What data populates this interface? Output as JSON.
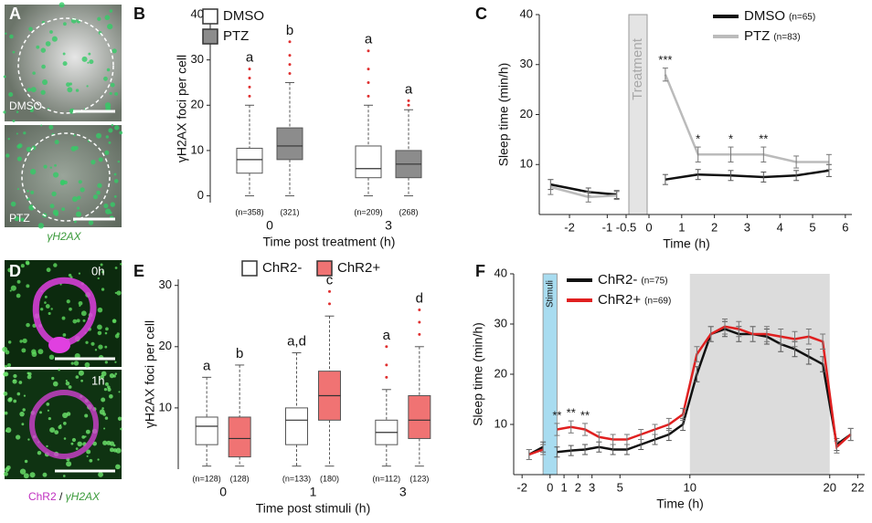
{
  "panel_labels": [
    "A",
    "B",
    "C",
    "D",
    "E",
    "F"
  ],
  "images": {
    "A": {
      "top_label": "DMSO",
      "bottom_label": "PTZ",
      "caption": "γH2AX"
    },
    "D": {
      "top_label": "0h",
      "bottom_label": "1h",
      "caption_1": "ChR2",
      "caption_sep": " / ",
      "caption_2": "γH2AX"
    }
  },
  "chart_data": [
    {
      "type": "box",
      "ylabel": "γH2AX foci per cell",
      "xlabel": "Time post treatment (h)",
      "categories": [
        "0",
        "3"
      ],
      "ylim": [
        -1.5,
        40
      ],
      "yticks": [
        0,
        10,
        20,
        30,
        40
      ],
      "outlier_color": "#e03030",
      "legend": "upper-left",
      "series": [
        {
          "name": "DMSO",
          "color": "#ffffff",
          "min": [
            0,
            0
          ],
          "q1": [
            5,
            4
          ],
          "median": [
            8,
            6
          ],
          "q3": [
            10.5,
            11
          ],
          "max": [
            20,
            20
          ],
          "outliers": [
            [
              22,
              24,
              26,
              28
            ],
            [
              22,
              25,
              28,
              32
            ]
          ],
          "letters": [
            "a",
            "a"
          ],
          "n_labels": [
            "(n=358)",
            "(n=209)"
          ]
        },
        {
          "name": "PTZ",
          "color": "#8c8c8c",
          "min": [
            0,
            0
          ],
          "q1": [
            8,
            4
          ],
          "median": [
            11,
            7
          ],
          "q3": [
            15,
            10
          ],
          "max": [
            25,
            19
          ],
          "outliers": [
            [
              27,
              29,
              31,
              34
            ],
            [
              20,
              21
            ]
          ],
          "letters": [
            "b",
            "a"
          ],
          "n_labels": [
            "(321)",
            "(268)"
          ]
        }
      ]
    },
    {
      "type": "line",
      "ylabel": "Sleep time (min/h)",
      "xlabel": "Time (h)",
      "x": [
        -2.5,
        -1.5,
        -0.75,
        0,
        0.5,
        1.5,
        2.5,
        3.5,
        4.5,
        5.5
      ],
      "xlim": [
        -2.8,
        6.2
      ],
      "xticks": [
        -2,
        -1,
        -0.5,
        0,
        1,
        2,
        3,
        4,
        5,
        6
      ],
      "ylim": [
        0,
        40
      ],
      "yticks": [
        10,
        20,
        30,
        40
      ],
      "legend": "upper-right",
      "band": {
        "label": "Treatment",
        "range": [
          -0.5,
          0
        ],
        "color": "#e4e4e4"
      },
      "significance": [
        null,
        null,
        null,
        null,
        "***",
        "*",
        "*",
        "**",
        null,
        null
      ],
      "series": [
        {
          "name": "DMSO",
          "n_label": "(n=65)",
          "color": "#111111",
          "values": [
            6,
            4.5,
            4,
            null,
            7,
            8,
            7.8,
            7.5,
            7.8,
            8.8
          ],
          "errors": [
            1,
            0.8,
            0.8,
            null,
            1,
            1,
            1,
            1,
            1,
            1.2
          ]
        },
        {
          "name": "PTZ",
          "n_label": "(n=83)",
          "color": "#bbbbbb",
          "values": [
            5.5,
            3.5,
            3.8,
            null,
            28,
            12,
            12,
            12,
            10.5,
            10.5
          ],
          "errors": [
            1.5,
            1,
            0.8,
            null,
            1.3,
            1.5,
            1.5,
            1.5,
            1.2,
            1.5
          ]
        }
      ]
    },
    {
      "type": "box",
      "ylabel": "γH2AX foci per cell",
      "xlabel": "Time post stimuli (h)",
      "categories": [
        "0",
        "1",
        "3"
      ],
      "ylim": [
        0,
        31
      ],
      "yticks": [
        10,
        20,
        30
      ],
      "outlier_color": "#e03030",
      "legend": "top",
      "series": [
        {
          "name": "ChR2-",
          "color": "#ffffff",
          "min": [
            0.5,
            0.5,
            0.5
          ],
          "q1": [
            4,
            4,
            4
          ],
          "median": [
            7,
            8,
            6
          ],
          "q3": [
            8.5,
            10,
            8
          ],
          "max": [
            15,
            19,
            13
          ],
          "outliers": [
            [],
            [],
            [
              15,
              17,
              20
            ]
          ],
          "letters": [
            "a",
            "a,d",
            "a"
          ],
          "n_labels": [
            "(n=128)",
            "(n=133)",
            "(n=112)"
          ]
        },
        {
          "name": "ChR2+",
          "color": "#f07373",
          "min": [
            0.5,
            0.5,
            0.5
          ],
          "q1": [
            2,
            8,
            5
          ],
          "median": [
            5,
            12,
            8
          ],
          "q3": [
            8.5,
            16,
            12
          ],
          "max": [
            17,
            25,
            20
          ],
          "outliers": [
            [],
            [
              27,
              29
            ],
            [
              22,
              24,
              26
            ]
          ],
          "letters": [
            "b",
            "c",
            "d"
          ],
          "n_labels": [
            "(128)",
            "(180)",
            "(123)"
          ]
        }
      ]
    },
    {
      "type": "line",
      "ylabel": "Sleep time (min/h)",
      "xlabel": "Time (h)",
      "x": [
        -1.5,
        -0.5,
        0,
        0.5,
        1.5,
        2.5,
        3.5,
        4.5,
        5.5,
        6.5,
        7.5,
        8.5,
        9.5,
        10.5,
        11.5,
        12.5,
        13.5,
        14.5,
        15.5,
        16.5,
        17.5,
        18.5,
        19.5,
        20.5,
        21.5
      ],
      "xlim": [
        -2.6,
        22.5
      ],
      "xticks": [
        -2,
        0,
        1,
        2,
        3,
        5,
        10,
        20,
        22
      ],
      "ylim": [
        0,
        40
      ],
      "yticks": [
        10,
        20,
        30,
        40
      ],
      "legend": "upper-left",
      "band": {
        "label": "Stimuli",
        "range": [
          -0.5,
          0.5
        ],
        "color": "#a8dcf0"
      },
      "shade": [
        10,
        20
      ],
      "significance": [
        null,
        null,
        null,
        "**",
        "**",
        "**",
        null,
        null,
        null,
        null,
        null,
        null,
        null,
        null,
        null,
        null,
        null,
        null,
        null,
        null,
        null,
        null,
        null,
        null,
        null
      ],
      "series": [
        {
          "name": "ChR2-",
          "n_label": "(n=75)",
          "color": "#111111",
          "values": [
            4,
            5.5,
            null,
            4.5,
            4.8,
            5,
            5.5,
            5,
            5,
            6,
            7,
            8,
            10,
            20,
            28,
            29,
            28,
            28,
            27.5,
            26,
            25,
            23.5,
            22,
            6,
            8
          ],
          "errors": [
            1,
            1,
            null,
            1,
            1,
            1,
            1,
            1,
            1,
            1,
            1,
            1.2,
            1.2,
            1.5,
            1.5,
            1.5,
            1.5,
            1.5,
            1.5,
            1.5,
            1.5,
            1.5,
            1.5,
            1.2,
            1.2
          ]
        },
        {
          "name": "ChR2+",
          "n_label": "(n=69)",
          "color": "#e02020",
          "values": [
            4,
            5,
            null,
            9,
            9.5,
            9,
            7.5,
            7,
            7,
            8,
            9,
            10,
            12,
            24,
            28,
            29.5,
            29,
            28,
            28,
            27.5,
            27,
            27.5,
            26.5,
            5.5,
            8
          ],
          "errors": [
            1,
            1,
            null,
            1.2,
            1.2,
            1.2,
            1,
            1,
            1,
            1,
            1,
            1.2,
            1.2,
            1.5,
            1.5,
            1.5,
            1.5,
            1.5,
            1.5,
            1.5,
            1.5,
            1.5,
            1.5,
            1.2,
            1.2
          ]
        }
      ]
    }
  ]
}
